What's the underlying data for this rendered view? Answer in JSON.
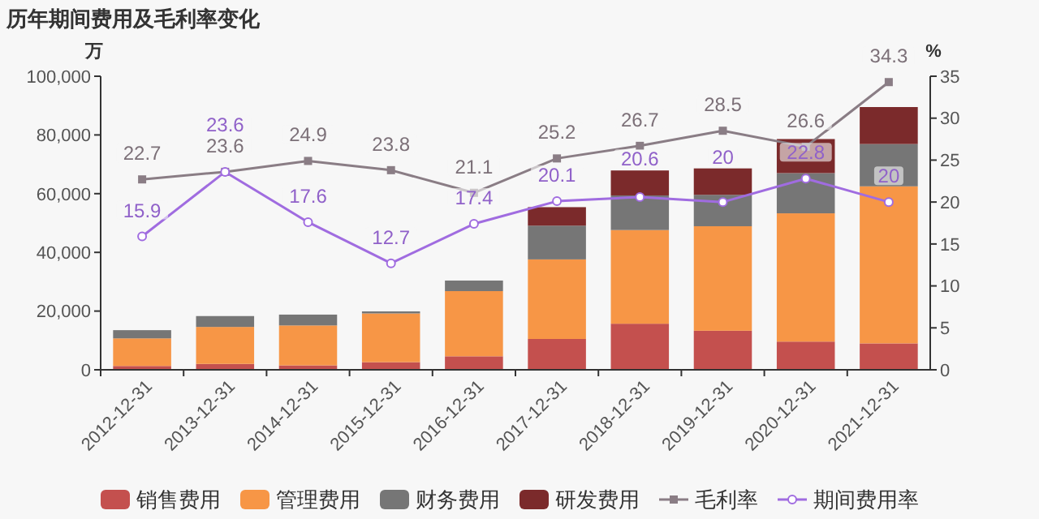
{
  "chart_data": {
    "type": "bar",
    "title": "历年期间费用及毛利率变化",
    "ylabel": "万",
    "y2label": "%",
    "stacked": true,
    "legend": "bottom",
    "grid": false,
    "categories": [
      "2012-12-31",
      "2013-12-31",
      "2014-12-31",
      "2015-12-31",
      "2016-12-31",
      "2017-12-31",
      "2018-12-31",
      "2019-12-31",
      "2020-12-31",
      "2021-12-31"
    ],
    "ylim": [
      0,
      100000
    ],
    "yticks": [
      {
        "value": 0,
        "label": "0"
      },
      {
        "value": 20000,
        "label": "20,000"
      },
      {
        "value": 40000,
        "label": "40,000"
      },
      {
        "value": 60000,
        "label": "60,000"
      },
      {
        "value": 80000,
        "label": "80,000"
      },
      {
        "value": 100000,
        "label": "100,000"
      }
    ],
    "y2lim": [
      0,
      35
    ],
    "y2ticks": [
      0,
      5,
      10,
      15,
      20,
      25,
      30,
      35
    ],
    "series": [
      {
        "name": "销售费用",
        "color": "#c4504e",
        "values": [
          1300,
          2000,
          1500,
          2600,
          4600,
          10500,
          15700,
          13300,
          9600,
          9000
        ]
      },
      {
        "name": "管理费用",
        "color": "#f79646",
        "values": [
          9400,
          12600,
          13600,
          16600,
          22200,
          27100,
          31900,
          35600,
          43700,
          53500
        ]
      },
      {
        "name": "财务费用",
        "color": "#767676",
        "values": [
          2800,
          3700,
          3700,
          700,
          3600,
          11500,
          11800,
          10700,
          13700,
          14400
        ]
      },
      {
        "name": "研发费用",
        "color": "#7b2a2b",
        "values": [
          null,
          null,
          null,
          null,
          null,
          6300,
          8500,
          9000,
          11600,
          12600
        ]
      },
      {
        "name": "毛利率",
        "type": "line",
        "axis": "y2",
        "marker": "square",
        "color": "#8a7d85",
        "values": [
          22.7,
          23.6,
          24.9,
          23.8,
          21.1,
          25.2,
          26.7,
          28.5,
          26.6,
          34.3
        ],
        "value_labels": [
          "22.7",
          "23.6",
          "24.9",
          "23.8",
          "21.1",
          "25.2",
          "26.7",
          "28.5",
          "26.6",
          "34.3"
        ]
      },
      {
        "name": "期间费用率",
        "type": "line",
        "axis": "y2",
        "marker": "circle",
        "color": "#a06ce0",
        "values": [
          15.9,
          23.6,
          17.6,
          12.7,
          17.4,
          20.1,
          20.6,
          20,
          22.8,
          20
        ],
        "value_labels": [
          "15.9",
          "23.6",
          "17.6",
          "12.7",
          "17.4",
          "20.1",
          "20.6",
          "20",
          "22.8",
          "20"
        ]
      }
    ]
  }
}
